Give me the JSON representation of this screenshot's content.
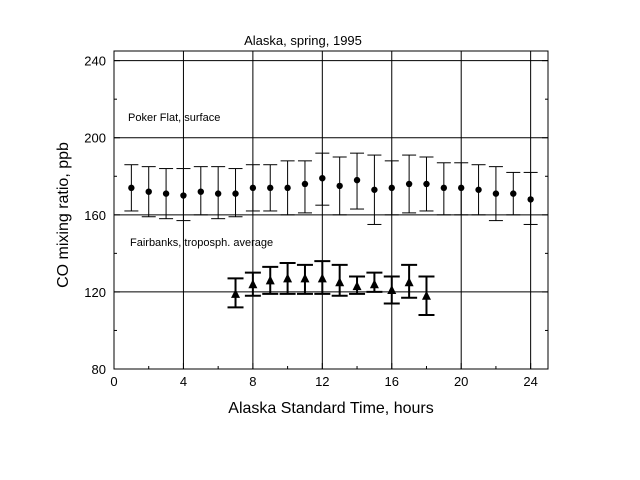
{
  "chart_data": {
    "type": "scatter",
    "title": "Alaska, spring, 1995",
    "xlabel": "Alaska Standard Time, hours",
    "ylabel": "CO mixing ratio, ppb",
    "xlim": [
      0,
      25
    ],
    "ylim": [
      80,
      245
    ],
    "x_ticks": [
      0,
      4,
      8,
      12,
      16,
      20,
      24
    ],
    "y_ticks": [
      80,
      120,
      160,
      200,
      240
    ],
    "grid": true,
    "legend": "none",
    "series": [
      {
        "name": "Poker Flat, surface",
        "marker": "circle",
        "x": [
          1,
          2,
          3,
          4,
          5,
          6,
          7,
          8,
          9,
          10,
          11,
          12,
          13,
          14,
          15,
          16,
          17,
          18,
          19,
          20,
          21,
          22,
          23,
          24
        ],
        "y": [
          174,
          172,
          171,
          170,
          172,
          171,
          171,
          174,
          174,
          174,
          176,
          179,
          175,
          178,
          173,
          174,
          176,
          176,
          174,
          174,
          173,
          171,
          171,
          168
        ],
        "err_low": [
          162,
          159,
          158,
          157,
          160,
          158,
          159,
          162,
          162,
          160,
          161,
          165,
          160,
          163,
          155,
          160,
          161,
          162,
          160,
          160,
          160,
          157,
          160,
          155
        ],
        "err_high": [
          186,
          185,
          184,
          184,
          185,
          185,
          184,
          186,
          186,
          188,
          188,
          192,
          190,
          192,
          191,
          188,
          191,
          190,
          187,
          187,
          186,
          185,
          182,
          182
        ]
      },
      {
        "name": "Fairbanks, troposph. average",
        "marker": "triangle",
        "x": [
          7,
          8,
          9,
          10,
          11,
          12,
          13,
          14,
          15,
          16,
          17,
          18
        ],
        "y": [
          119,
          124,
          126,
          127,
          127,
          127,
          125,
          123,
          124,
          121,
          125,
          118
        ],
        "err_low": [
          112,
          118,
          119,
          119,
          119,
          119,
          118,
          119,
          120,
          114,
          117,
          108
        ],
        "err_high": [
          127,
          130,
          133,
          135,
          134,
          136,
          134,
          128,
          130,
          128,
          134,
          128
        ]
      }
    ],
    "annotations": [
      "Poker Flat, surface",
      "Fairbanks, troposph. average"
    ]
  }
}
